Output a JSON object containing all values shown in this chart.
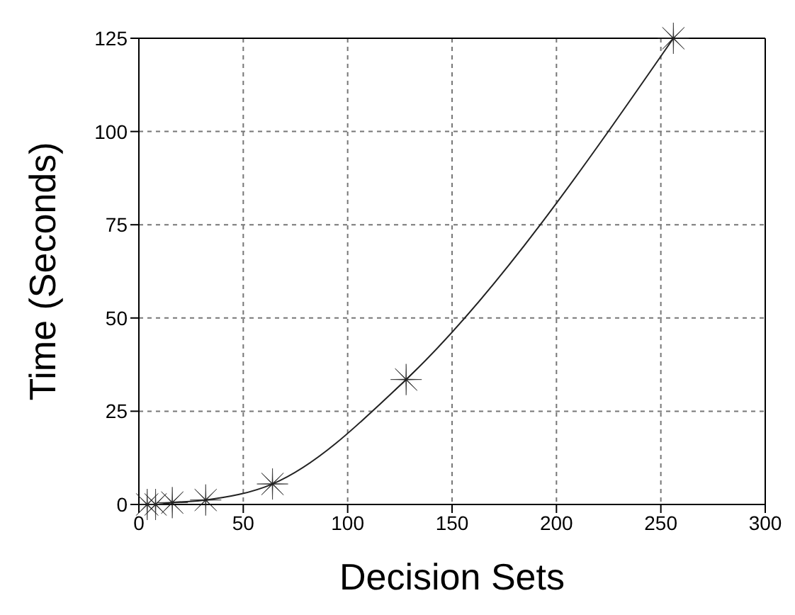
{
  "chart_data": {
    "type": "line",
    "xlabel": "Decision Sets",
    "ylabel": "Time (Seconds)",
    "x": [
      4,
      8,
      16,
      32,
      64,
      128,
      256
    ],
    "series": [
      {
        "color": "#222222",
        "values": [
          0,
          0,
          0.5,
          1.2,
          5.5,
          33.5,
          125
        ]
      }
    ],
    "xlim": [
      0,
      300
    ],
    "xticks": [
      0,
      50,
      100,
      150,
      200,
      250,
      300
    ],
    "ylim": [
      0,
      125
    ],
    "yticks": [
      0,
      25,
      50,
      75,
      100,
      125
    ],
    "grid": true,
    "marker": "star",
    "line_style": "solid"
  }
}
